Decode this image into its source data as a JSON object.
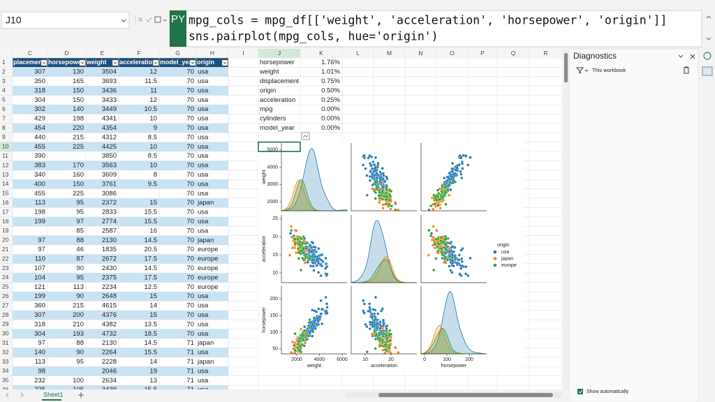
{
  "name_box": "J10",
  "formula": {
    "badge": "PY",
    "lines": [
      "mpg_cols = mpg_df[['weight', 'acceleration', 'horsepower', 'origin']]",
      "sns.pairplot(mpg_cols, hue='origin')"
    ]
  },
  "columns": [
    "C",
    "D",
    "E",
    "F",
    "G",
    "H",
    "I",
    "J",
    "K",
    "L",
    "M",
    "N",
    "O",
    "P",
    "Q",
    "R"
  ],
  "row_numbers": [
    1,
    2,
    3,
    4,
    5,
    6,
    7,
    8,
    9,
    10,
    11,
    12,
    13,
    14,
    15,
    16,
    17,
    18,
    19,
    20,
    21,
    22,
    23,
    24,
    25,
    26,
    27,
    28,
    29,
    30,
    31,
    32,
    33,
    34,
    35,
    36
  ],
  "table": {
    "headers": [
      "placemen",
      "horsepowe",
      "weight",
      "acceleratio",
      "model_yea",
      "origin"
    ],
    "rows": [
      [
        "307",
        "130",
        "3504",
        "12",
        "70",
        "usa"
      ],
      [
        "350",
        "165",
        "3693",
        "11.5",
        "70",
        "usa"
      ],
      [
        "318",
        "150",
        "3436",
        "11",
        "70",
        "usa"
      ],
      [
        "304",
        "150",
        "3433",
        "12",
        "70",
        "usa"
      ],
      [
        "302",
        "140",
        "3449",
        "10.5",
        "70",
        "usa"
      ],
      [
        "429",
        "198",
        "4341",
        "10",
        "70",
        "usa"
      ],
      [
        "454",
        "220",
        "4354",
        "9",
        "70",
        "usa"
      ],
      [
        "440",
        "215",
        "4312",
        "8.5",
        "70",
        "usa"
      ],
      [
        "455",
        "225",
        "4425",
        "10",
        "70",
        "usa"
      ],
      [
        "390",
        null,
        "3850",
        "8.5",
        "70",
        "usa"
      ],
      [
        "383",
        "170",
        "3563",
        "10",
        "70",
        "usa"
      ],
      [
        "340",
        "160",
        "3609",
        "8",
        "70",
        "usa"
      ],
      [
        "400",
        "150",
        "3761",
        "9.5",
        "70",
        "usa"
      ],
      [
        "455",
        "225",
        "3086",
        null,
        "70",
        "usa"
      ],
      [
        "113",
        "95",
        "2372",
        "15",
        "70",
        "japan"
      ],
      [
        "198",
        "95",
        "2833",
        "15.5",
        "70",
        "usa"
      ],
      [
        "199",
        "97",
        "2774",
        "15.5",
        "70",
        "usa"
      ],
      [
        null,
        "85",
        "2587",
        "16",
        "70",
        "usa"
      ],
      [
        "97",
        "88",
        "2130",
        "14.5",
        "70",
        "japan"
      ],
      [
        "97",
        "46",
        "1835",
        "20.5",
        "70",
        "europe"
      ],
      [
        "110",
        "87",
        "2672",
        "17.5",
        "70",
        "europe"
      ],
      [
        "107",
        "90",
        "2430",
        "14.5",
        "70",
        "europe"
      ],
      [
        "104",
        "95",
        "2375",
        "17.5",
        "70",
        "europe"
      ],
      [
        "121",
        "113",
        "2234",
        "12.5",
        "70",
        "europe"
      ],
      [
        "199",
        "90",
        "2648",
        "15",
        "70",
        "usa"
      ],
      [
        "360",
        "215",
        "4615",
        "14",
        "70",
        "usa"
      ],
      [
        "307",
        "200",
        "4376",
        "15",
        "70",
        "usa"
      ],
      [
        "318",
        "210",
        "4382",
        "13.5",
        "70",
        "usa"
      ],
      [
        "304",
        "193",
        "4732",
        "18.5",
        "70",
        "usa"
      ],
      [
        "97",
        "88",
        "2130",
        "14.5",
        "71",
        "japan"
      ],
      [
        "140",
        "90",
        "2264",
        "15.5",
        "71",
        "usa"
      ],
      [
        "113",
        "95",
        "2228",
        "14",
        "71",
        "japan"
      ],
      [
        "98",
        null,
        "2046",
        "19",
        "71",
        "usa"
      ],
      [
        "232",
        "100",
        "2634",
        "13",
        "71",
        "usa"
      ],
      [
        "225",
        "105",
        "3439",
        "15.5",
        "71",
        "usa"
      ]
    ]
  },
  "missing": [
    [
      "horsepower",
      "1.76%"
    ],
    [
      "weight",
      "1.01%"
    ],
    [
      "displacement",
      "0.75%"
    ],
    [
      "origin",
      "0.50%"
    ],
    [
      "acceleration",
      "0.25%"
    ],
    [
      "mpg",
      "0.00%"
    ],
    [
      "cylinders",
      "0.00%"
    ],
    [
      "model_year",
      "0.00%"
    ]
  ],
  "plot": {
    "variables": [
      "weight",
      "acceleration",
      "horsepower"
    ],
    "xlims": [
      [
        650,
        6430
      ],
      [
        4.6,
        30
      ],
      [
        -16,
        278
      ]
    ],
    "ylims": [
      [
        1470,
        5400
      ],
      [
        7.3,
        26
      ],
      [
        35,
        238
      ]
    ],
    "xticks": [
      [
        2000,
        4000,
        6000
      ],
      [
        10,
        20
      ],
      [
        0,
        100,
        200
      ]
    ],
    "yticks": [
      [
        2000,
        3000,
        4000,
        5000
      ],
      [
        10,
        15,
        20,
        25
      ],
      [
        50,
        100,
        150,
        200
      ]
    ],
    "legend": {
      "title": "origin",
      "items": [
        {
          "name": "usa",
          "color": "#1f77b4"
        },
        {
          "name": "japan",
          "color": "#ff7f0e"
        },
        {
          "name": "europe",
          "color": "#2ca02c"
        }
      ]
    }
  },
  "diagnostics": {
    "title": "Diagnostics",
    "scope": "This workbook",
    "option": "Show automatically"
  },
  "sheet_tab": "Sheet1"
}
